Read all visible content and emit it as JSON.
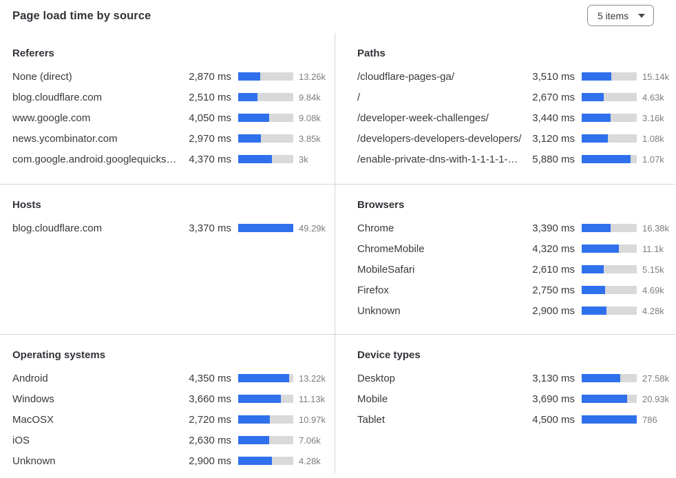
{
  "header": {
    "title": "Page load time by source",
    "items_dropdown": {
      "value": "5 items",
      "icon": "chevron-down-icon"
    }
  },
  "colors": {
    "bar_fill": "#2f70ed",
    "bar_track": "#d9d9d9",
    "divider": "#d5d5d5",
    "text_dark": "#36393a",
    "text_muted": "#7d7d7d"
  },
  "chart_data": {
    "type": "bar",
    "unit": "ms",
    "legend_position": "none",
    "panels": [
      {
        "title": "Referers",
        "bar_scale_max_ms": 7200,
        "rows": [
          {
            "label": "None (direct)",
            "ms": 2870,
            "ms_display": "2,870 ms",
            "count": "13.26k"
          },
          {
            "label": "blog.cloudflare.com",
            "ms": 2510,
            "ms_display": "2,510 ms",
            "count": "9.84k"
          },
          {
            "label": "www.google.com",
            "ms": 4050,
            "ms_display": "4,050 ms",
            "count": "9.08k"
          },
          {
            "label": "news.ycombinator.com",
            "ms": 2970,
            "ms_display": "2,970 ms",
            "count": "3.85k"
          },
          {
            "label": "com.google.android.googlequicksearc...",
            "ms": 4370,
            "ms_display": "4,370 ms",
            "count": "3k"
          }
        ]
      },
      {
        "title": "Paths",
        "bar_scale_max_ms": 6600,
        "rows": [
          {
            "label": "/cloudflare-pages-ga/",
            "ms": 3510,
            "ms_display": "3,510 ms",
            "count": "15.14k"
          },
          {
            "label": "/",
            "ms": 2670,
            "ms_display": "2,670 ms",
            "count": "4.63k"
          },
          {
            "label": "/developer-week-challenges/",
            "ms": 3440,
            "ms_display": "3,440 ms",
            "count": "3.16k"
          },
          {
            "label": "/developers-developers-developers/",
            "ms": 3120,
            "ms_display": "3,120 ms",
            "count": "1.08k"
          },
          {
            "label": "/enable-private-dns-with-1-1-1-1-on-...",
            "ms": 5880,
            "ms_display": "5,880 ms",
            "count": "1.07k"
          }
        ]
      },
      {
        "title": "Hosts",
        "bar_scale_max_ms": 3370,
        "rows": [
          {
            "label": "blog.cloudflare.com",
            "ms": 3370,
            "ms_display": "3,370 ms",
            "count": "49.29k"
          }
        ]
      },
      {
        "title": "Browsers",
        "bar_scale_max_ms": 6450,
        "rows": [
          {
            "label": "Chrome",
            "ms": 3390,
            "ms_display": "3,390 ms",
            "count": "16.38k"
          },
          {
            "label": "ChromeMobile",
            "ms": 4320,
            "ms_display": "4,320 ms",
            "count": "11.1k"
          },
          {
            "label": "MobileSafari",
            "ms": 2610,
            "ms_display": "2,610 ms",
            "count": "5.15k"
          },
          {
            "label": "Firefox",
            "ms": 2750,
            "ms_display": "2,750 ms",
            "count": "4.69k"
          },
          {
            "label": "Unknown",
            "ms": 2900,
            "ms_display": "2,900 ms",
            "count": "4.28k"
          }
        ]
      },
      {
        "title": "Operating systems",
        "bar_scale_max_ms": 4700,
        "rows": [
          {
            "label": "Android",
            "ms": 4350,
            "ms_display": "4,350 ms",
            "count": "13.22k"
          },
          {
            "label": "Windows",
            "ms": 3660,
            "ms_display": "3,660 ms",
            "count": "11.13k"
          },
          {
            "label": "MacOSX",
            "ms": 2720,
            "ms_display": "2,720 ms",
            "count": "10.97k"
          },
          {
            "label": "iOS",
            "ms": 2630,
            "ms_display": "2,630 ms",
            "count": "7.06k"
          },
          {
            "label": "Unknown",
            "ms": 2900,
            "ms_display": "2,900 ms",
            "count": "4.28k"
          }
        ]
      },
      {
        "title": "Device types",
        "bar_scale_max_ms": 4500,
        "rows": [
          {
            "label": "Desktop",
            "ms": 3130,
            "ms_display": "3,130 ms",
            "count": "27.58k"
          },
          {
            "label": "Mobile",
            "ms": 3690,
            "ms_display": "3,690 ms",
            "count": "20.93k"
          },
          {
            "label": "Tablet",
            "ms": 4500,
            "ms_display": "4,500 ms",
            "count": "786"
          }
        ]
      }
    ]
  }
}
